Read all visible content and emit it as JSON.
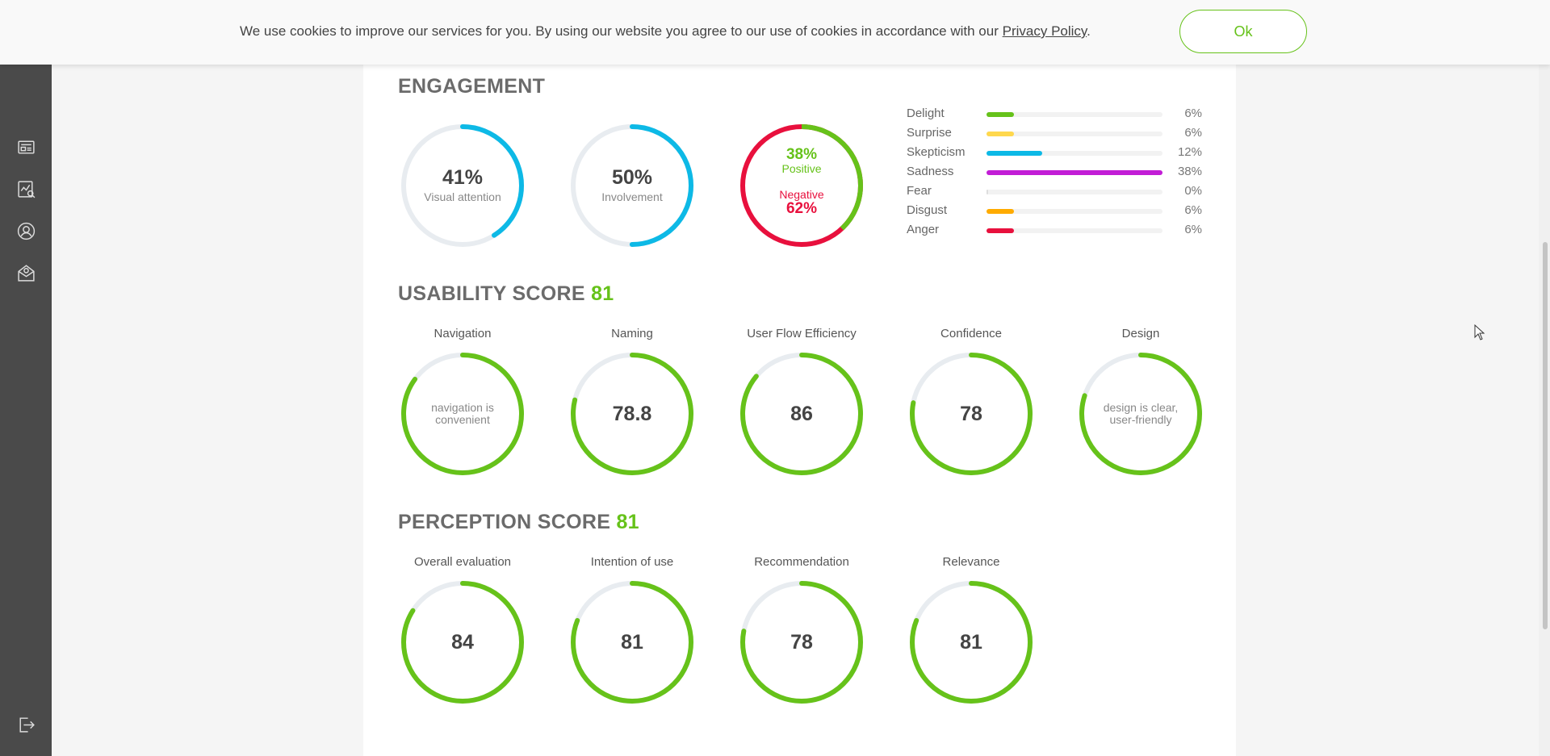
{
  "cookie": {
    "text": "We use cookies to improve our services for you. By using our website you agree to our use of cookies in accordance with our ",
    "link": "Privacy Policy",
    "suffix": ".",
    "ok_label": "Ok"
  },
  "sidebar": {
    "items": [
      {
        "icon": "reports-icon"
      },
      {
        "icon": "analytics-icon"
      },
      {
        "icon": "profile-icon"
      },
      {
        "icon": "mail-settings-icon"
      },
      {
        "icon": "logout-icon"
      }
    ]
  },
  "engagement": {
    "title": "ENGAGEMENT",
    "visual_attention": {
      "value": "41%",
      "label": "Visual attention",
      "fraction": 0.41
    },
    "involvement": {
      "value": "50%",
      "label": "Involvement",
      "fraction": 0.5
    },
    "sentiment": {
      "positive_value": "38%",
      "positive_label": "Positive",
      "negative_label": "Negative",
      "negative_value": "62%",
      "positive_fraction": 0.38
    },
    "emotions": [
      {
        "label": "Delight",
        "pct": "6%",
        "fraction": 0.06,
        "color": "#66c21a"
      },
      {
        "label": "Surprise",
        "pct": "6%",
        "fraction": 0.06,
        "color": "#ffd84d"
      },
      {
        "label": "Skepticism",
        "pct": "12%",
        "fraction": 0.12,
        "color": "#0db9e6"
      },
      {
        "label": "Sadness",
        "pct": "38%",
        "fraction": 0.38,
        "color": "#c21dd6"
      },
      {
        "label": "Fear",
        "pct": "0%",
        "fraction": 0.0,
        "color": "#999999"
      },
      {
        "label": "Disgust",
        "pct": "6%",
        "fraction": 0.06,
        "color": "#ffab00"
      },
      {
        "label": "Anger",
        "pct": "6%",
        "fraction": 0.06,
        "color": "#e8103d"
      }
    ]
  },
  "usability": {
    "title": "USABILITY SCORE",
    "score": "81",
    "items": [
      {
        "title": "Navigation",
        "value": "",
        "text": "navigation is convenient",
        "fraction": 0.85
      },
      {
        "title": "Naming",
        "value": "78.8",
        "text": "",
        "fraction": 0.788
      },
      {
        "title": "User Flow Efficiency",
        "value": "86",
        "text": "",
        "fraction": 0.86
      },
      {
        "title": "Confidence",
        "value": "78",
        "text": "",
        "fraction": 0.78
      },
      {
        "title": "Design",
        "value": "",
        "text": "design is clear, user-friendly",
        "fraction": 0.8
      }
    ]
  },
  "perception": {
    "title": "PERCEPTION SCORE",
    "score": "81",
    "items": [
      {
        "title": "Overall evaluation",
        "value": "84",
        "fraction": 0.84
      },
      {
        "title": "Intention of use",
        "value": "81",
        "fraction": 0.81
      },
      {
        "title": "Recommendation",
        "value": "78",
        "fraction": 0.78
      },
      {
        "title": "Relevance",
        "value": "81",
        "fraction": 0.81
      }
    ]
  },
  "colors": {
    "green": "#66c21a",
    "blue": "#0db9e6",
    "red": "#e8103d",
    "track": "#e8ecf0"
  }
}
